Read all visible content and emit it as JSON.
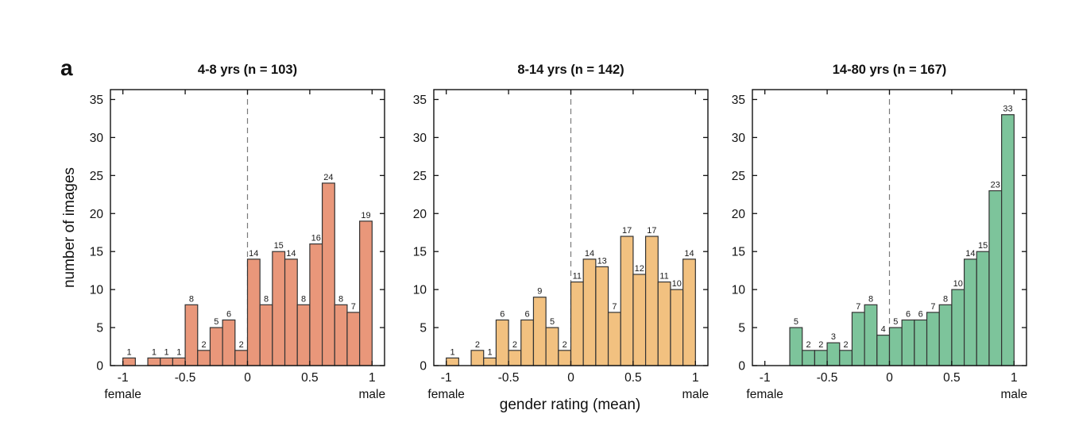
{
  "panel_label": "a",
  "ylabel": "number of images",
  "xlabel": "gender rating (mean)",
  "axes": {
    "bin_start": -1.0,
    "bin_width": 0.1,
    "xlim": [
      -1.1,
      1.1
    ],
    "ylim": [
      0,
      36.3
    ],
    "xtick_values": [
      -1,
      -0.5,
      0,
      0.5,
      1
    ],
    "xticks": [
      "-1",
      "-0.5",
      "0",
      "0.5",
      "1"
    ],
    "yticks": [
      0,
      5,
      10,
      15,
      20,
      25,
      30,
      35
    ],
    "ref_line_x": 0,
    "grid": false,
    "x_end_labels": {
      "left": "female",
      "right": "male"
    }
  },
  "chart_data": [
    {
      "type": "bar",
      "title": "4-8 yrs (n = 103)",
      "color": "#e9977a",
      "bar_edge_color": "#333333",
      "bin_lefts": [
        -1.0,
        -0.9,
        -0.8,
        -0.7,
        -0.6,
        -0.5,
        -0.4,
        -0.3,
        -0.2,
        -0.1,
        0.0,
        0.1,
        0.2,
        0.3,
        0.4,
        0.5,
        0.6,
        0.7,
        0.8,
        0.9
      ],
      "values": [
        1,
        0,
        1,
        1,
        1,
        8,
        2,
        5,
        6,
        2,
        14,
        8,
        15,
        14,
        8,
        16,
        24,
        8,
        7,
        19
      ]
    },
    {
      "type": "bar",
      "title": "8-14 yrs (n = 142)",
      "color": "#f2c180",
      "bar_edge_color": "#333333",
      "bin_lefts": [
        -1.0,
        -0.9,
        -0.8,
        -0.7,
        -0.6,
        -0.5,
        -0.4,
        -0.3,
        -0.2,
        -0.1,
        0.0,
        0.1,
        0.2,
        0.3,
        0.4,
        0.5,
        0.6,
        0.7,
        0.8,
        0.9
      ],
      "values": [
        1,
        0,
        2,
        1,
        6,
        2,
        6,
        9,
        5,
        2,
        11,
        14,
        13,
        7,
        17,
        12,
        17,
        11,
        10,
        14
      ]
    },
    {
      "type": "bar",
      "title": "14-80 yrs (n = 167)",
      "color": "#7dc49b",
      "bar_edge_color": "#333333",
      "bin_lefts": [
        -1.0,
        -0.9,
        -0.8,
        -0.7,
        -0.6,
        -0.5,
        -0.4,
        -0.3,
        -0.2,
        -0.1,
        0.0,
        0.1,
        0.2,
        0.3,
        0.4,
        0.5,
        0.6,
        0.7,
        0.8,
        0.9
      ],
      "values": [
        0,
        0,
        5,
        2,
        2,
        3,
        2,
        7,
        8,
        4,
        5,
        6,
        6,
        7,
        8,
        10,
        14,
        15,
        23,
        33
      ]
    }
  ]
}
